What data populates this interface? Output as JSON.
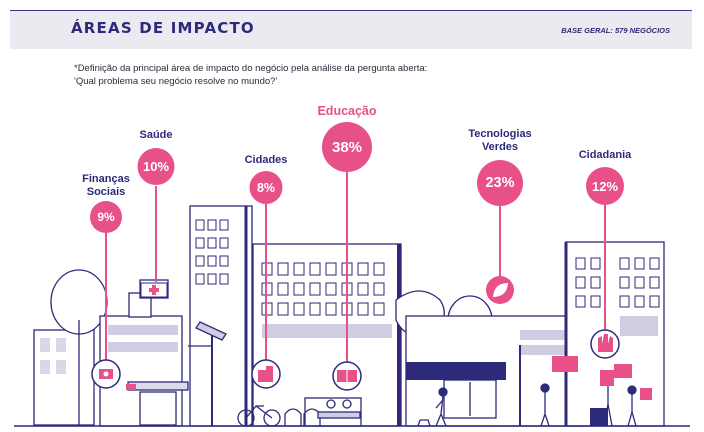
{
  "header": {
    "title": "ÁREAS DE IMPACTO",
    "base": "BASE GERAL: 579 NEGÓCIOS"
  },
  "note": {
    "line1": "*Definição da principal área de impacto do negócio pela análise da pergunta aberta:",
    "line2": "'Qual problema seu negócio resolve no mundo?'"
  },
  "areas": [
    {
      "line1": "Finanças",
      "line2": "Sociais",
      "pct": "9%",
      "icon": "money-icon"
    },
    {
      "line1": "Saúde",
      "line2": "",
      "pct": "10%",
      "icon": "health-cross-icon"
    },
    {
      "line1": "Cidades",
      "line2": "",
      "pct": "8%",
      "icon": "city-icon"
    },
    {
      "line1": "Educação",
      "line2": "",
      "pct": "38%",
      "icon": "book-icon"
    },
    {
      "line1": "Tecnologias",
      "line2": "Verdes",
      "pct": "23%",
      "icon": "leaf-icon"
    },
    {
      "line1": "Cidadania",
      "line2": "",
      "pct": "12%",
      "icon": "raised-fist-icon"
    }
  ],
  "colors": {
    "accent": "#e8508a",
    "navy": "#2d2a7a",
    "header_bg": "#ebeaf1"
  }
}
